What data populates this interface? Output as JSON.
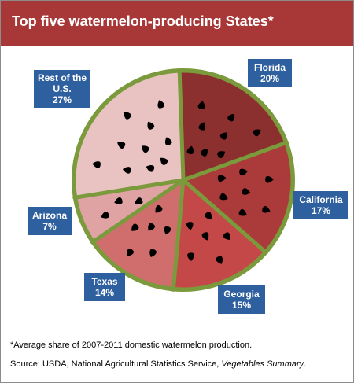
{
  "title": "Top five watermelon-producing States*",
  "footnote": "*Average share of 2007-2011  domestic watermelon production.",
  "source": {
    "prefix": "Source: USDA, National Agricultural Statistics Service, ",
    "publication": "Vegetables Summary",
    "suffix": "."
  },
  "colors": {
    "title_bar": "#a83838",
    "label_box": "#2e5f9e",
    "rind": "#7a9a3c",
    "seed": "#000000"
  },
  "chart_data": {
    "type": "pie",
    "title": "Top five watermelon-producing States*",
    "unit": "%",
    "slices": [
      {
        "name": "Florida",
        "value": 20,
        "label": "20%",
        "color": "#8c2f2f"
      },
      {
        "name": "California",
        "value": 17,
        "label": "17%",
        "color": "#ab3a3a"
      },
      {
        "name": "Georgia",
        "value": 15,
        "label": "15%",
        "color": "#c44848"
      },
      {
        "name": "Texas",
        "value": 14,
        "label": "14%",
        "color": "#d06d6d"
      },
      {
        "name": "Arizona",
        "value": 7,
        "label": "7%",
        "color": "#e0a3a3"
      },
      {
        "name": "Rest of the U.S.",
        "value": 27,
        "label": "27%",
        "color": "#e9c2c2"
      }
    ]
  }
}
